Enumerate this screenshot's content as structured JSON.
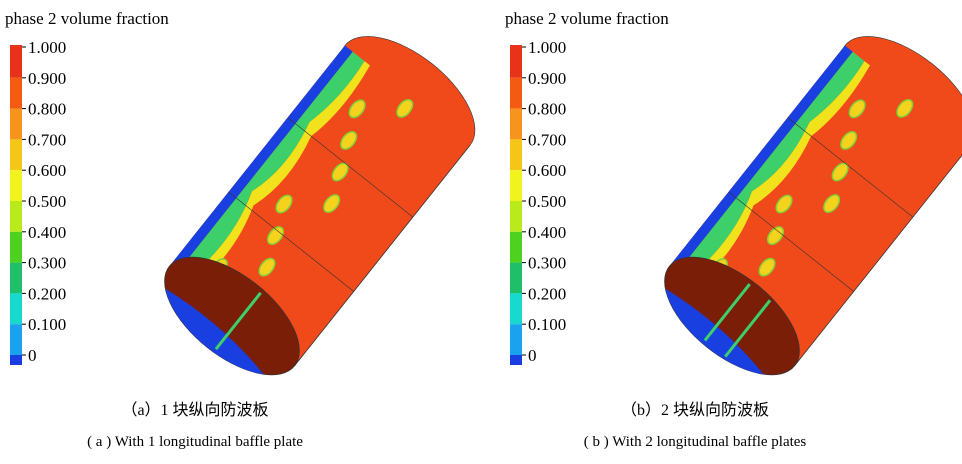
{
  "panels": [
    {
      "colorbar": {
        "title": "phase 2 volume fraction",
        "ticks": [
          "1.000",
          "0.900",
          "0.800",
          "0.700",
          "0.600",
          "0.500",
          "0.400",
          "0.300",
          "0.200",
          "0.100",
          "0"
        ]
      },
      "caption_cn": "（a）1 块纵向防波板",
      "caption_en": "( a )  With 1 longitudinal baffle plate"
    },
    {
      "colorbar": {
        "title": "phase 2 volume fraction",
        "ticks": [
          "1.000",
          "0.900",
          "0.800",
          "0.700",
          "0.600",
          "0.500",
          "0.400",
          "0.300",
          "0.200",
          "0.100",
          "0"
        ]
      },
      "caption_cn": "（b）2 块纵向防波板",
      "caption_en": "( b )  With 2 longitudinal baffle plates"
    }
  ]
}
